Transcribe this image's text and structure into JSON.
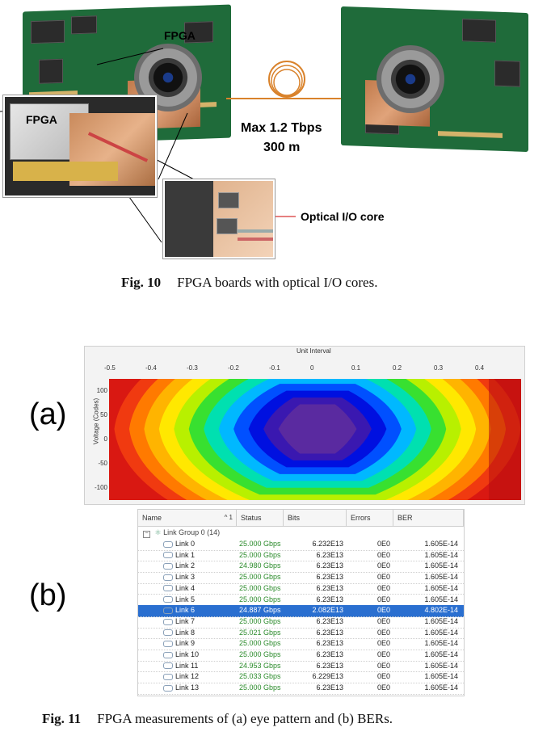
{
  "fig10": {
    "label_fpga_top": "FPGA",
    "label_fpga_zoom": "FPGA",
    "label_max_rate": "Max 1.2 Tbps",
    "label_distance": "300 m",
    "label_optical_core": "Optical I/O core",
    "caption_num": "Fig. 10",
    "caption_text": "FPGA boards with optical I/O cores."
  },
  "fig11": {
    "panel_a": "(a)",
    "panel_b": "(b)",
    "caption_num": "Fig. 11",
    "caption_text": "FPGA measurements of (a) eye pattern and (b) BERs.",
    "colors": {
      "bands": [
        "#d91812",
        "#f03a10",
        "#ff7a00",
        "#ffb400",
        "#ffe800",
        "#b8f000",
        "#38e030",
        "#00e0b0",
        "#00b8ff",
        "#0050ff",
        "#0010e0",
        "#3a18b0",
        "#5a2aa0"
      ]
    }
  },
  "chart_data": {
    "type": "heatmap",
    "title": "Unit Interval",
    "xlabel": "",
    "ylabel": "Voltage (Codes)",
    "x_ticks": [
      "-0.5",
      "-0.4",
      "-0.3",
      "-0.2",
      "-0.1",
      "0",
      "0.1",
      "0.2",
      "0.3",
      "0.4"
    ],
    "y_ticks": [
      "100",
      "50",
      "0",
      "-50",
      "-100"
    ],
    "xlim": [
      -0.5,
      0.5
    ],
    "ylim": [
      -125,
      125
    ]
  },
  "table": {
    "columns": [
      "Name",
      "Status",
      "Bits",
      "Errors",
      "BER"
    ],
    "sort_indicator": "^ 1",
    "group": "Link Group 0 (14)",
    "rows": [
      {
        "name": "Link 0",
        "status": "25.000 Gbps",
        "bits": "6.232E13",
        "errors": "0E0",
        "ber": "1.605E-14",
        "selected": false
      },
      {
        "name": "Link 1",
        "status": "25.000 Gbps",
        "bits": "6.23E13",
        "errors": "0E0",
        "ber": "1.605E-14",
        "selected": false
      },
      {
        "name": "Link 2",
        "status": "24.980 Gbps",
        "bits": "6.23E13",
        "errors": "0E0",
        "ber": "1.605E-14",
        "selected": false
      },
      {
        "name": "Link 3",
        "status": "25.000 Gbps",
        "bits": "6.23E13",
        "errors": "0E0",
        "ber": "1.605E-14",
        "selected": false
      },
      {
        "name": "Link 4",
        "status": "25.000 Gbps",
        "bits": "6.23E13",
        "errors": "0E0",
        "ber": "1.605E-14",
        "selected": false
      },
      {
        "name": "Link 5",
        "status": "25.000 Gbps",
        "bits": "6.23E13",
        "errors": "0E0",
        "ber": "1.605E-14",
        "selected": false
      },
      {
        "name": "Link 6",
        "status": "24.887 Gbps",
        "bits": "2.082E13",
        "errors": "0E0",
        "ber": "4.802E-14",
        "selected": true
      },
      {
        "name": "Link 7",
        "status": "25.000 Gbps",
        "bits": "6.23E13",
        "errors": "0E0",
        "ber": "1.605E-14",
        "selected": false
      },
      {
        "name": "Link 8",
        "status": "25.021 Gbps",
        "bits": "6.23E13",
        "errors": "0E0",
        "ber": "1.605E-14",
        "selected": false
      },
      {
        "name": "Link 9",
        "status": "25.000 Gbps",
        "bits": "6.23E13",
        "errors": "0E0",
        "ber": "1.605E-14",
        "selected": false
      },
      {
        "name": "Link 10",
        "status": "25.000 Gbps",
        "bits": "6.23E13",
        "errors": "0E0",
        "ber": "1.605E-14",
        "selected": false
      },
      {
        "name": "Link 11",
        "status": "24.953 Gbps",
        "bits": "6.23E13",
        "errors": "0E0",
        "ber": "1.605E-14",
        "selected": false
      },
      {
        "name": "Link 12",
        "status": "25.033 Gbps",
        "bits": "6.229E13",
        "errors": "0E0",
        "ber": "1.605E-14",
        "selected": false
      },
      {
        "name": "Link 13",
        "status": "25.000 Gbps",
        "bits": "6.23E13",
        "errors": "0E0",
        "ber": "1.605E-14",
        "selected": false
      }
    ]
  }
}
